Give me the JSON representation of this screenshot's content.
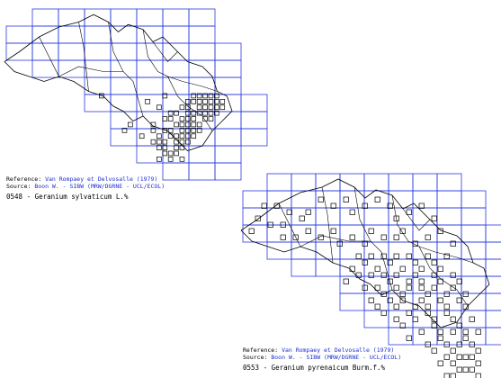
{
  "colors": {
    "grid": "#2a3be0",
    "border": "#000000",
    "occurrence": "#000000",
    "link": "#1f2fd0"
  },
  "maps": [
    {
      "reference_label": "Reference:",
      "reference_value": "Van Rompaey et Delvosalle (1979)",
      "source_label": "Source:",
      "source_value": "Boon W. - SIBW (MRW/DGRNE - UCL/ECOL)",
      "caption": "0548 - Geranium sylvaticum L.%",
      "occurrences": [
        [
          27,
          10
        ],
        [
          28,
          10
        ],
        [
          29,
          10
        ],
        [
          30,
          10
        ],
        [
          31,
          10
        ],
        [
          26,
          11
        ],
        [
          27,
          11
        ],
        [
          28,
          11
        ],
        [
          29,
          11
        ],
        [
          30,
          11
        ],
        [
          31,
          11
        ],
        [
          32,
          11
        ],
        [
          25,
          12
        ],
        [
          26,
          12
        ],
        [
          28,
          12
        ],
        [
          29,
          12
        ],
        [
          30,
          12
        ],
        [
          31,
          12
        ],
        [
          32,
          12
        ],
        [
          23,
          13
        ],
        [
          24,
          13
        ],
        [
          26,
          13
        ],
        [
          27,
          13
        ],
        [
          28,
          13
        ],
        [
          29,
          13
        ],
        [
          30,
          13
        ],
        [
          31,
          13
        ],
        [
          22,
          14
        ],
        [
          23,
          14
        ],
        [
          25,
          14
        ],
        [
          26,
          14
        ],
        [
          27,
          14
        ],
        [
          29,
          14
        ],
        [
          30,
          14
        ],
        [
          20,
          15
        ],
        [
          24,
          15
        ],
        [
          25,
          15
        ],
        [
          26,
          15
        ],
        [
          27,
          15
        ],
        [
          28,
          15
        ],
        [
          20,
          16
        ],
        [
          22,
          16
        ],
        [
          23,
          16
        ],
        [
          25,
          16
        ],
        [
          26,
          16
        ],
        [
          27,
          16
        ],
        [
          28,
          16
        ],
        [
          21,
          17
        ],
        [
          24,
          17
        ],
        [
          25,
          17
        ],
        [
          26,
          17
        ],
        [
          27,
          17
        ],
        [
          20,
          18
        ],
        [
          21,
          18
        ],
        [
          22,
          18
        ],
        [
          24,
          18
        ],
        [
          25,
          18
        ],
        [
          26,
          18
        ],
        [
          21,
          19
        ],
        [
          22,
          19
        ],
        [
          24,
          19
        ],
        [
          25,
          19
        ],
        [
          22,
          20
        ],
        [
          23,
          20
        ],
        [
          24,
          20
        ],
        [
          21,
          21
        ],
        [
          23,
          21
        ],
        [
          25,
          21
        ],
        [
          11,
          10
        ],
        [
          19,
          11
        ],
        [
          16,
          15
        ],
        [
          15,
          16
        ],
        [
          18,
          17
        ],
        [
          21,
          12
        ],
        [
          22,
          10
        ],
        [
          23,
          17
        ]
      ]
    },
    {
      "reference_label": "Reference:",
      "reference_value": "Van Rompaey et Delvosalle (1979)",
      "source_label": "Source:",
      "source_value": "Boon W. - SIBW (MRW/DGRNE - UCL/ECOL)",
      "caption": "0553 - Geranium pyrenaicum Burm.f.%",
      "occurrences": [
        [
          3,
          4
        ],
        [
          5,
          4
        ],
        [
          7,
          5
        ],
        [
          2,
          6
        ],
        [
          4,
          7
        ],
        [
          6,
          7
        ],
        [
          1,
          8
        ],
        [
          9,
          6
        ],
        [
          10,
          5
        ],
        [
          12,
          3
        ],
        [
          14,
          4
        ],
        [
          16,
          3
        ],
        [
          17,
          5
        ],
        [
          19,
          4
        ],
        [
          21,
          3
        ],
        [
          23,
          4
        ],
        [
          24,
          6
        ],
        [
          26,
          5
        ],
        [
          28,
          4
        ],
        [
          30,
          6
        ],
        [
          6,
          9
        ],
        [
          8,
          9
        ],
        [
          10,
          8
        ],
        [
          12,
          9
        ],
        [
          14,
          8
        ],
        [
          15,
          10
        ],
        [
          17,
          9
        ],
        [
          19,
          10
        ],
        [
          20,
          8
        ],
        [
          22,
          9
        ],
        [
          24,
          9
        ],
        [
          25,
          8
        ],
        [
          27,
          10
        ],
        [
          29,
          9
        ],
        [
          31,
          8
        ],
        [
          33,
          10
        ],
        [
          18,
          12
        ],
        [
          19,
          13
        ],
        [
          20,
          12
        ],
        [
          21,
          14
        ],
        [
          22,
          12
        ],
        [
          23,
          13
        ],
        [
          24,
          12
        ],
        [
          25,
          14
        ],
        [
          26,
          12
        ],
        [
          27,
          13
        ],
        [
          28,
          14
        ],
        [
          29,
          12
        ],
        [
          30,
          13
        ],
        [
          31,
          14
        ],
        [
          32,
          12
        ],
        [
          17,
          14
        ],
        [
          18,
          15
        ],
        [
          20,
          15
        ],
        [
          22,
          15
        ],
        [
          23,
          16
        ],
        [
          24,
          15
        ],
        [
          26,
          16
        ],
        [
          27,
          15
        ],
        [
          28,
          16
        ],
        [
          30,
          15
        ],
        [
          31,
          16
        ],
        [
          33,
          15
        ],
        [
          34,
          16
        ],
        [
          16,
          16
        ],
        [
          19,
          17
        ],
        [
          21,
          17
        ],
        [
          22,
          18
        ],
        [
          24,
          17
        ],
        [
          25,
          18
        ],
        [
          26,
          17
        ],
        [
          28,
          17
        ],
        [
          29,
          18
        ],
        [
          30,
          17
        ],
        [
          32,
          18
        ],
        [
          33,
          17
        ],
        [
          35,
          18
        ],
        [
          20,
          19
        ],
        [
          21,
          20
        ],
        [
          23,
          19
        ],
        [
          24,
          20
        ],
        [
          25,
          19
        ],
        [
          27,
          20
        ],
        [
          28,
          19
        ],
        [
          29,
          20
        ],
        [
          31,
          19
        ],
        [
          32,
          20
        ],
        [
          34,
          19
        ],
        [
          35,
          20
        ],
        [
          22,
          21
        ],
        [
          24,
          22
        ],
        [
          26,
          21
        ],
        [
          27,
          22
        ],
        [
          29,
          21
        ],
        [
          30,
          22
        ],
        [
          32,
          21
        ],
        [
          33,
          22
        ],
        [
          34,
          23
        ],
        [
          36,
          22
        ],
        [
          25,
          23
        ],
        [
          28,
          24
        ],
        [
          30,
          23
        ],
        [
          31,
          24
        ],
        [
          33,
          24
        ],
        [
          35,
          24
        ],
        [
          37,
          24
        ],
        [
          26,
          25
        ],
        [
          29,
          26
        ],
        [
          31,
          25
        ],
        [
          32,
          26
        ],
        [
          34,
          26
        ],
        [
          35,
          25
        ],
        [
          36,
          26
        ],
        [
          37,
          27
        ],
        [
          30,
          27
        ],
        [
          32,
          28
        ],
        [
          33,
          27
        ],
        [
          34,
          28
        ],
        [
          35,
          28
        ],
        [
          36,
          28
        ],
        [
          37,
          29
        ],
        [
          31,
          29
        ],
        [
          33,
          29
        ],
        [
          34,
          30
        ],
        [
          35,
          30
        ],
        [
          36,
          30
        ],
        [
          37,
          31
        ],
        [
          32,
          31
        ],
        [
          33,
          31
        ],
        [
          34,
          32
        ],
        [
          35,
          32
        ],
        [
          36,
          32
        ]
      ]
    }
  ]
}
